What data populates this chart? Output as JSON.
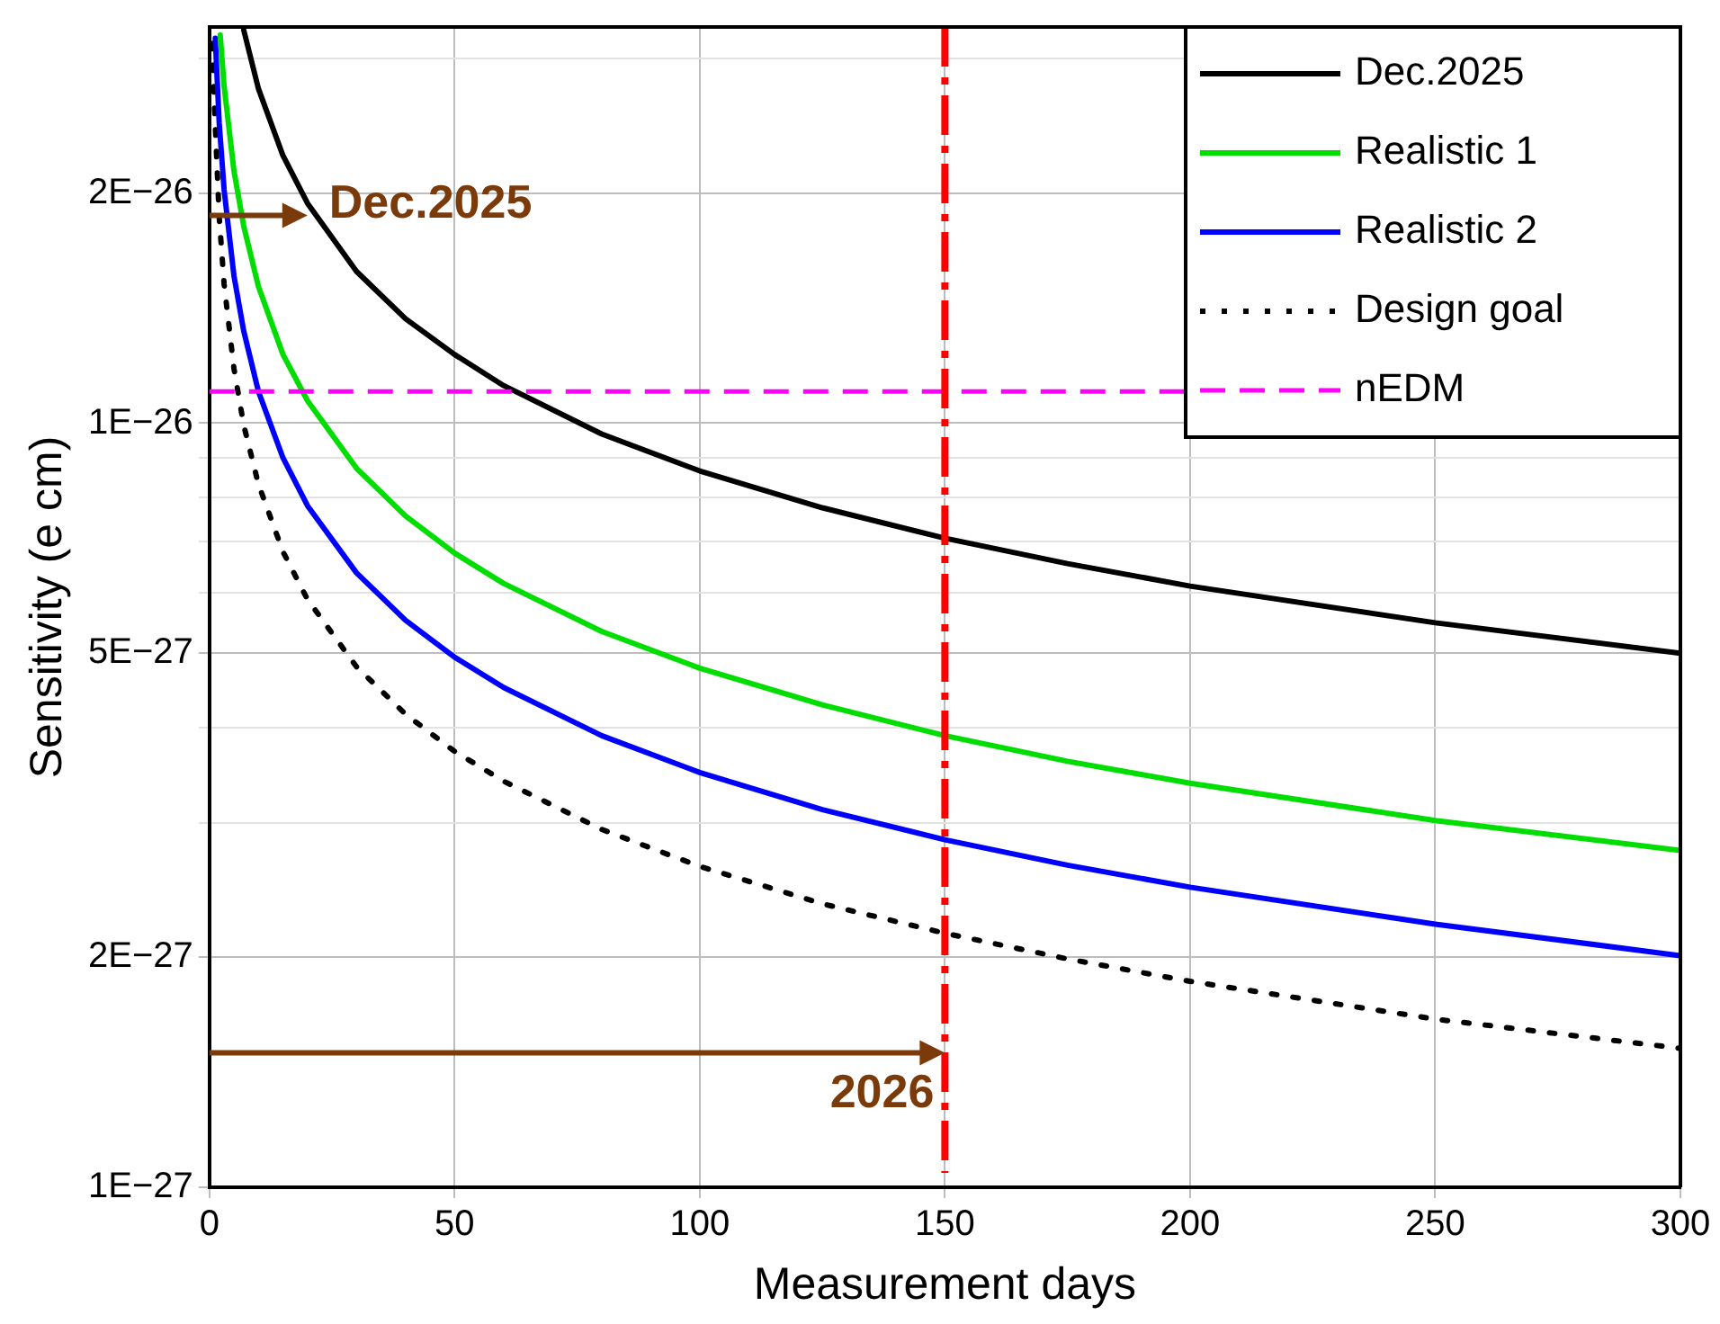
{
  "chart_data": {
    "type": "line",
    "xlabel": "Measurement days",
    "ylabel": "Sensitivity (e cm)",
    "log": "y",
    "grid": true,
    "legend": "top right",
    "marker": "none",
    "xlim": [
      0,
      300
    ],
    "xticks": [
      0,
      50,
      100,
      150,
      200,
      250,
      300
    ],
    "ylim": [
      1e-27,
      3.3e-26
    ],
    "yticks": [
      {
        "value": 1e-27,
        "label": "1E−27"
      },
      {
        "value": 2e-27,
        "label": "2E−27"
      },
      {
        "value": 3e-27,
        "label": null
      },
      {
        "value": 4e-27,
        "label": null
      },
      {
        "value": 5e-27,
        "label": "5E−27"
      },
      {
        "value": 6e-27,
        "label": null
      },
      {
        "value": 7e-27,
        "label": null
      },
      {
        "value": 8e-27,
        "label": null
      },
      {
        "value": 9e-27,
        "label": null
      },
      {
        "value": 1e-26,
        "label": "1E−26"
      },
      {
        "value": 2e-26,
        "label": "2E−26"
      },
      {
        "value": 3e-26,
        "label": null
      }
    ],
    "series": [
      {
        "name": "Dec.2025",
        "color": "#000000",
        "line_style": "solid",
        "x": [
          7,
          10,
          15,
          20,
          30,
          40,
          50,
          60,
          80,
          100,
          125,
          150,
          175,
          200,
          250,
          300
        ],
        "values": [
          3.27e-26,
          2.74e-26,
          2.24e-26,
          1.94e-26,
          1.58e-26,
          1.37e-26,
          1.23e-26,
          1.12e-26,
          9.68e-27,
          8.66e-27,
          7.75e-27,
          7.07e-27,
          6.55e-27,
          6.12e-27,
          5.48e-27,
          5e-27
        ]
      },
      {
        "name": "Realistic 1",
        "color": "#00dd00",
        "line_style": "solid",
        "x": [
          2.2,
          3,
          5,
          7,
          10,
          15,
          20,
          30,
          40,
          50,
          60,
          80,
          100,
          125,
          150,
          175,
          200,
          250,
          300
        ],
        "values": [
          3.22e-26,
          2.76e-26,
          2.14e-26,
          1.81e-26,
          1.51e-26,
          1.23e-26,
          1.07e-26,
          8.73e-27,
          7.56e-27,
          6.76e-27,
          6.17e-27,
          5.34e-27,
          4.78e-27,
          4.28e-27,
          3.9e-27,
          3.61e-27,
          3.38e-27,
          3.02e-27,
          2.76e-27
        ]
      },
      {
        "name": "Realistic 2",
        "color": "#0000ff",
        "line_style": "solid",
        "x": [
          1.2,
          2,
          3,
          5,
          7,
          10,
          15,
          20,
          30,
          40,
          50,
          60,
          80,
          100,
          125,
          150,
          175,
          200,
          250,
          300
        ],
        "values": [
          3.19e-26,
          2.47e-26,
          2.02e-26,
          1.56e-26,
          1.32e-26,
          1.1e-26,
          9.01e-27,
          7.8e-27,
          6.37e-27,
          5.52e-27,
          4.94e-27,
          4.51e-27,
          3.9e-27,
          3.49e-27,
          3.12e-27,
          2.85e-27,
          2.64e-27,
          2.47e-27,
          2.21e-27,
          2.01e-27
        ]
      },
      {
        "name": "Design goal",
        "color": "#000000",
        "line_style": "dotted",
        "x": [
          0.7,
          1,
          2,
          3,
          5,
          7,
          10,
          15,
          20,
          30,
          40,
          50,
          60,
          80,
          100,
          125,
          150,
          175,
          200,
          250,
          300
        ],
        "values": [
          3.14e-26,
          2.63e-26,
          1.86e-26,
          1.52e-26,
          1.18e-26,
          9.94e-27,
          8.32e-27,
          6.79e-27,
          5.88e-27,
          4.8e-27,
          4.16e-27,
          3.72e-27,
          3.4e-27,
          2.94e-27,
          2.63e-27,
          2.35e-27,
          2.15e-27,
          1.99e-27,
          1.86e-27,
          1.66e-27,
          1.52e-27
        ]
      }
    ],
    "ref_lines": [
      {
        "axis": "y",
        "value": 1.1e-26,
        "label": "nEDM",
        "color": "#ff00ff",
        "line_style": "dashed"
      },
      {
        "axis": "x",
        "value": 150,
        "color": "#ff0000",
        "line_style": "dashed"
      }
    ],
    "annotations": [
      {
        "text": "Dec.2025",
        "x": 20,
        "y": 1.87e-26
      },
      {
        "text": "2026",
        "x": 150,
        "y": 1.5e-27
      }
    ]
  }
}
